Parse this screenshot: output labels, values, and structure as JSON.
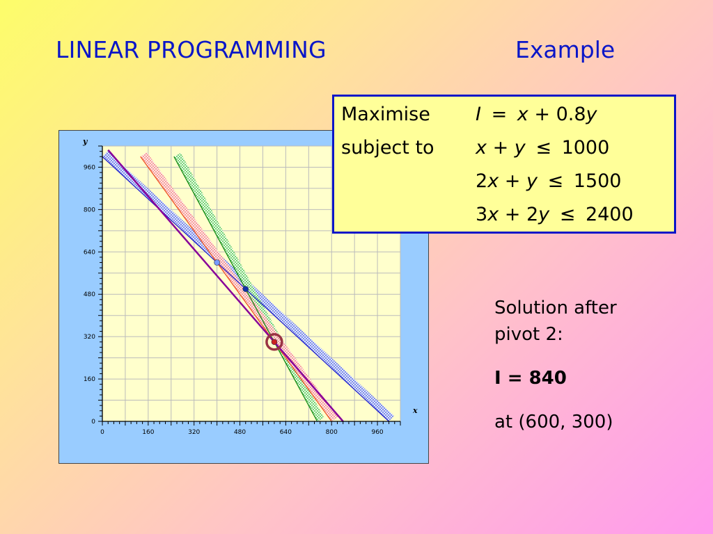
{
  "slide": {
    "title": "LINEAR PROGRAMMING",
    "subtitle": "Example"
  },
  "problem": {
    "maximise_label": "Maximise",
    "subject_to_label": "subject to",
    "objective": {
      "lhs": "I",
      "eq": "=",
      "x": "x",
      "rest": "+ 0.8",
      "y": "y"
    },
    "constraints": [
      {
        "coef_x": "",
        "x": "x",
        "plus": " + ",
        "coef_y": "",
        "y": "y",
        "op": "≤",
        "rhs": "1000"
      },
      {
        "coef_x": "2",
        "x": "x",
        "plus": " + ",
        "coef_y": "",
        "y": "y",
        "op": "≤",
        "rhs": "1500"
      },
      {
        "coef_x": "3",
        "x": "x",
        "plus": " + ",
        "coef_y": "2",
        "y": "y",
        "op": "≤",
        "rhs": "2400"
      }
    ]
  },
  "solution": {
    "line1": "Solution after",
    "line2": "pivot 2:",
    "value": "I = 840",
    "point": "at (600, 300)"
  },
  "chart_data": {
    "type": "line",
    "xlabel": "x",
    "ylabel": "y",
    "xlim": [
      0,
      1040
    ],
    "ylim": [
      0,
      1040
    ],
    "x_ticks": [
      0,
      160,
      320,
      480,
      640,
      800,
      960
    ],
    "y_ticks": [
      0,
      160,
      320,
      480,
      640,
      800,
      960
    ],
    "gridlines_every": 80,
    "minor_ticks_every": 20,
    "grid": true,
    "series": [
      {
        "segment": [
          [
            0,
            1000
          ],
          [
            1000,
            0
          ]
        ],
        "hatched_side": "above",
        "color": "#2222cc"
      },
      {
        "segment": [
          [
            250,
            1000
          ],
          [
            750,
            0
          ]
        ],
        "hatched_side": "above",
        "color": "#118811"
      },
      {
        "segment": [
          [
            133,
            1000
          ],
          [
            800,
            0
          ]
        ],
        "hatched_side": "above",
        "color": "#ee5522"
      },
      {
        "segment": [
          [
            20,
            1025
          ],
          [
            840,
            0
          ]
        ],
        "color": "#880099"
      }
    ],
    "points": [
      {
        "x": 400,
        "y": 600,
        "color": "#7799ff"
      },
      {
        "x": 500,
        "y": 500,
        "color": "#1133aa"
      },
      {
        "x": 600,
        "y": 300,
        "color": "#cc2222"
      }
    ],
    "highlight": {
      "x": 600,
      "y": 300,
      "color": "#993344"
    }
  }
}
